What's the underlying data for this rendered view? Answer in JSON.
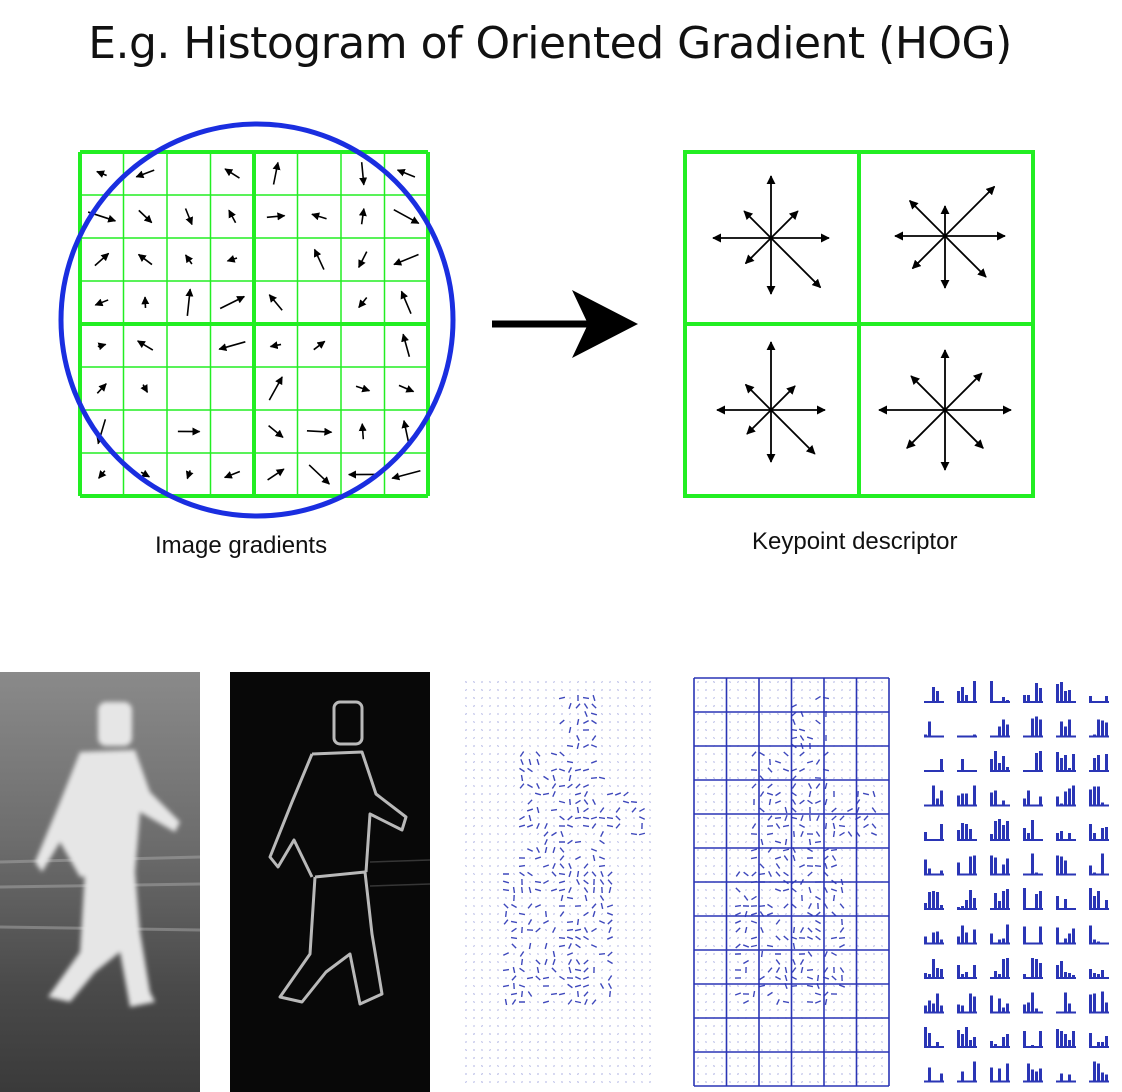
{
  "slide": {
    "title": "E.g. Histogram of Oriented Gradient (HOG)"
  },
  "diagram": {
    "left_caption": "Image gradients",
    "right_caption": "Keypoint descriptor",
    "colors": {
      "grid": "#22ee22",
      "circle": "#1a2ee0",
      "arrow": "#000000",
      "hog_blue": "#2a35b5"
    },
    "transition_arrow_icon": "right-arrow-icon"
  },
  "bottom_panels": [
    {
      "label": "pedestrian-photo"
    },
    {
      "label": "gradient-magnitude-image"
    },
    {
      "label": "gradient-orientation-field"
    },
    {
      "label": "cell-grid-overlay"
    },
    {
      "label": "per-cell-histograms"
    }
  ]
}
